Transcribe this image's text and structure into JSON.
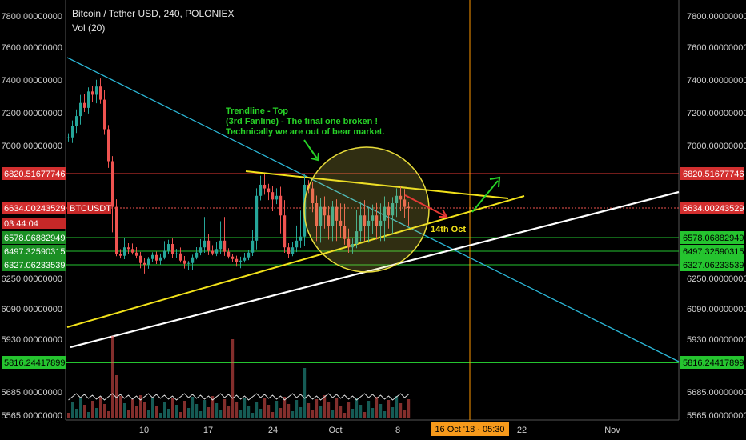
{
  "chart_data": {
    "type": "candlestick",
    "title": "Bitcoin / Tether USD, 240, POLONIEX",
    "volume_label": "Vol (20)",
    "y_ticks": [
      "7800.00000000",
      "7600.00000000",
      "7400.00000000",
      "7200.00000000",
      "7000.00000000",
      "6250.00000000",
      "6090.00000000",
      "5930.00000000",
      "5685.00000000",
      "5565.00000000"
    ],
    "right_only_ticks": [
      "6820.51677746",
      "6578.06882949",
      "6497.32590315",
      "6327.06233539"
    ],
    "y_ticks_right": [
      "7800.00000000",
      "7600.00000000",
      "7400.00000000",
      "7200.00000000",
      "7000.00000000",
      "6250.00000000",
      "6090.00000000",
      "5930.00000000",
      "5685.00000000",
      "5565.00000000"
    ],
    "x_ticks": [
      "10",
      "17",
      "24",
      "Oct",
      "8",
      "22",
      "Nov"
    ],
    "x_time_label": "16 Oct '18 · 05:30",
    "price_tags": {
      "resistance": "6820.51677746",
      "current": "6634.00243529",
      "symbol": "BTCUSDT",
      "countdown": "03:44:04",
      "level_1": "6578.06882949",
      "level_2": "6497.32590315",
      "level_3": "6327.06233539",
      "support": "5816.24417899"
    },
    "annotation": {
      "line1": "Trendline - Top",
      "line2": "(3rd Fanline) - The final one broken !",
      "line3": "Technically we are out of bear market.",
      "date_label": "14th Oct"
    },
    "horizontal_levels": [
      6820.52,
      6634.0,
      6578.07,
      6497.33,
      6327.06,
      5816.24
    ],
    "ohlc_close_path": [
      [
        0,
        7050
      ],
      [
        1,
        7120
      ],
      [
        2,
        7180
      ],
      [
        3,
        7260
      ],
      [
        4,
        7230
      ],
      [
        5,
        7330
      ],
      [
        6,
        7310
      ],
      [
        7,
        7360
      ],
      [
        8,
        7280
      ],
      [
        9,
        7100
      ],
      [
        10,
        6900
      ],
      [
        11,
        6640
      ],
      [
        12,
        6460
      ],
      [
        13,
        6440
      ],
      [
        14,
        6520
      ],
      [
        15,
        6510
      ],
      [
        16,
        6480
      ],
      [
        17,
        6440
      ],
      [
        18,
        6350
      ],
      [
        19,
        6330
      ],
      [
        20,
        6400
      ],
      [
        21,
        6450
      ],
      [
        22,
        6380
      ],
      [
        23,
        6420
      ],
      [
        24,
        6500
      ],
      [
        25,
        6540
      ],
      [
        26,
        6460
      ],
      [
        27,
        6470
      ],
      [
        28,
        6380
      ],
      [
        29,
        6340
      ],
      [
        30,
        6350
      ],
      [
        31,
        6420
      ],
      [
        32,
        6480
      ],
      [
        33,
        6520
      ],
      [
        34,
        6560
      ],
      [
        35,
        6500
      ],
      [
        36,
        6470
      ],
      [
        37,
        6510
      ],
      [
        38,
        6560
      ],
      [
        39,
        6490
      ],
      [
        40,
        6430
      ],
      [
        41,
        6400
      ],
      [
        42,
        6360
      ],
      [
        43,
        6380
      ],
      [
        44,
        6420
      ],
      [
        45,
        6480
      ],
      [
        46,
        6560
      ],
      [
        47,
        6700
      ],
      [
        48,
        6760
      ],
      [
        49,
        6740
      ],
      [
        50,
        6720
      ],
      [
        51,
        6680
      ],
      [
        52,
        6700
      ],
      [
        53,
        6620
      ],
      [
        54,
        6520
      ],
      [
        55,
        6460
      ],
      [
        56,
        6520
      ],
      [
        57,
        6560
      ],
      [
        58,
        6580
      ],
      [
        59,
        6760
      ],
      [
        60,
        6740
      ],
      [
        61,
        6660
      ],
      [
        62,
        6600
      ],
      [
        63,
        6640
      ],
      [
        64,
        6620
      ],
      [
        65,
        6600
      ],
      [
        66,
        6640
      ],
      [
        67,
        6610
      ],
      [
        68,
        6600
      ],
      [
        69,
        6570
      ],
      [
        70,
        6520
      ],
      [
        71,
        6540
      ],
      [
        72,
        6590
      ],
      [
        73,
        6620
      ],
      [
        74,
        6600
      ],
      [
        75,
        6610
      ],
      [
        76,
        6620
      ],
      [
        77,
        6600
      ],
      [
        78,
        6610
      ],
      [
        79,
        6640
      ],
      [
        80,
        6620
      ],
      [
        81,
        6660
      ],
      [
        82,
        6700
      ],
      [
        83,
        6680
      ],
      [
        84,
        6640
      ],
      [
        85,
        6634
      ]
    ],
    "ylim": [
      5520,
      7900
    ],
    "colors": {
      "up": "#26a69a",
      "down": "#ef5350",
      "trend_blue": "#2bb6d6",
      "trend_yellow": "#f2e21a",
      "trend_white": "#ffffff",
      "green_level": "#25c42f",
      "red_level": "#e53935",
      "vline": "#ff9800"
    }
  }
}
